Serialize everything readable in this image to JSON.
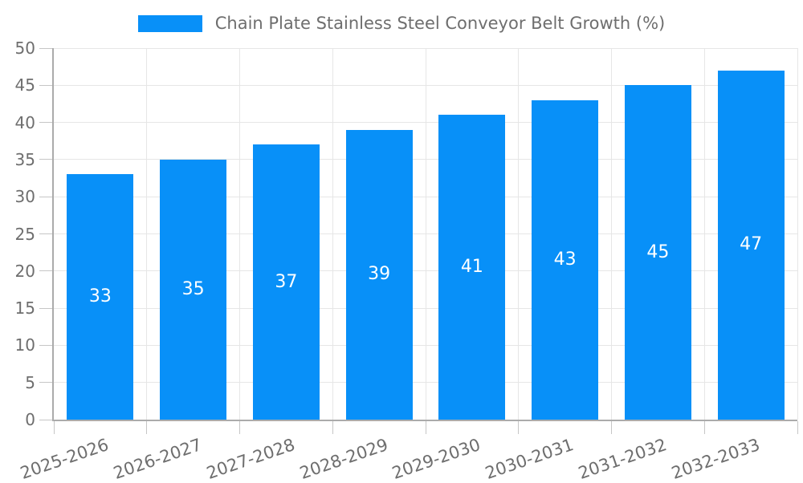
{
  "legend": {
    "label": "Chain Plate Stainless Steel Conveyor Belt Growth (%)"
  },
  "colors": {
    "accent": "#0890f8",
    "grid": "#e6e6e6",
    "tick": "#c6c6c6",
    "axis": "#ababab",
    "text": "#6e6e6e",
    "bar_label": "#ffffff",
    "background": "#ffffff"
  },
  "chart_data": {
    "type": "bar",
    "title": "Chain Plate Stainless Steel Conveyor Belt Growth (%)",
    "categories": [
      "2025-2026",
      "2026-2027",
      "2027-2028",
      "2028-2029",
      "2029-2030",
      "2030-2031",
      "2031-2032",
      "2032-2033"
    ],
    "values": [
      33,
      35,
      37,
      39,
      41,
      43,
      45,
      47
    ],
    "xlabel": "",
    "ylabel": "",
    "ylim": [
      0,
      50
    ],
    "ytick_step": 5,
    "grid": true,
    "legend_position": "top",
    "value_labels": "inside-middle",
    "x_label_rotation_deg": -19
  }
}
